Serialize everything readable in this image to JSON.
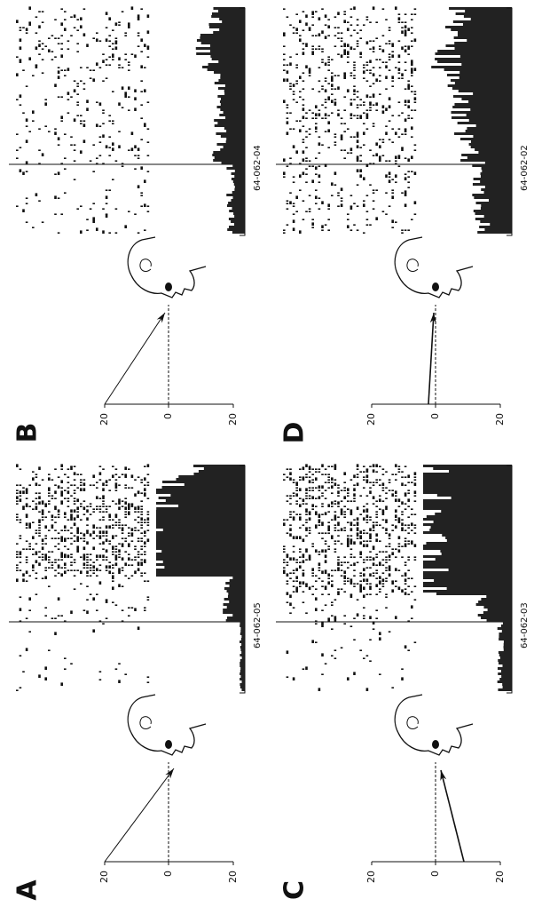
{
  "panels": [
    {
      "letter": "A",
      "scale_ticks": [
        20,
        0,
        20
      ],
      "recording_id": "64-062-05"
    },
    {
      "letter": "B",
      "scale_ticks": [
        20,
        0,
        20
      ],
      "recording_id": "64-062-04"
    },
    {
      "letter": "C",
      "scale_ticks": [
        20,
        0,
        20
      ],
      "recording_id": "64-062-03"
    },
    {
      "letter": "D",
      "scale_ticks": [
        20,
        0,
        20
      ],
      "recording_id": "64-062-02"
    }
  ]
}
